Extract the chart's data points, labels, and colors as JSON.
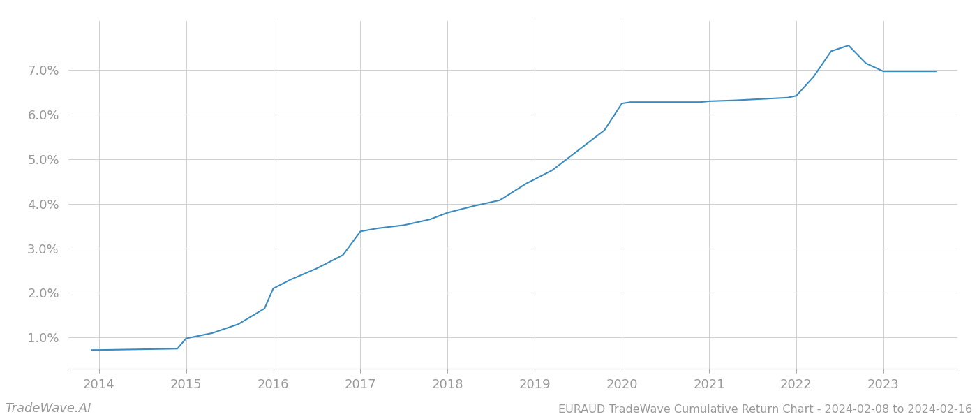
{
  "x_years": [
    2013.92,
    2014.0,
    2014.3,
    2014.6,
    2014.9,
    2015.0,
    2015.1,
    2015.3,
    2015.6,
    2015.9,
    2016.0,
    2016.2,
    2016.5,
    2016.8,
    2017.0,
    2017.2,
    2017.5,
    2017.8,
    2018.0,
    2018.3,
    2018.6,
    2018.9,
    2019.2,
    2019.5,
    2019.8,
    2020.0,
    2020.1,
    2020.3,
    2020.6,
    2020.9,
    2021.0,
    2021.3,
    2021.6,
    2021.9,
    2022.0,
    2022.2,
    2022.4,
    2022.6,
    2022.8,
    2023.0,
    2023.3,
    2023.6
  ],
  "y_values": [
    0.72,
    0.72,
    0.73,
    0.74,
    0.75,
    0.98,
    1.02,
    1.1,
    1.3,
    1.65,
    2.1,
    2.3,
    2.55,
    2.85,
    3.38,
    3.45,
    3.52,
    3.65,
    3.8,
    3.95,
    4.08,
    4.45,
    4.75,
    5.2,
    5.65,
    6.25,
    6.28,
    6.28,
    6.28,
    6.28,
    6.3,
    6.32,
    6.35,
    6.38,
    6.42,
    6.85,
    7.42,
    7.55,
    7.15,
    6.97,
    6.97,
    6.97
  ],
  "line_color": "#3a8bbf",
  "line_width": 1.5,
  "background_color": "#ffffff",
  "grid_color": "#d0d0d0",
  "title": "EURAUD TradeWave Cumulative Return Chart - 2024-02-08 to 2024-02-16",
  "watermark": "TradeWave.AI",
  "x_ticks": [
    2014,
    2015,
    2016,
    2017,
    2018,
    2019,
    2020,
    2021,
    2022,
    2023
  ],
  "y_ticks": [
    1.0,
    2.0,
    3.0,
    4.0,
    5.0,
    6.0,
    7.0
  ],
  "ylim": [
    0.3,
    8.1
  ],
  "xlim": [
    2013.65,
    2023.85
  ],
  "tick_fontsize": 13,
  "title_fontsize": 11.5,
  "watermark_fontsize": 13
}
